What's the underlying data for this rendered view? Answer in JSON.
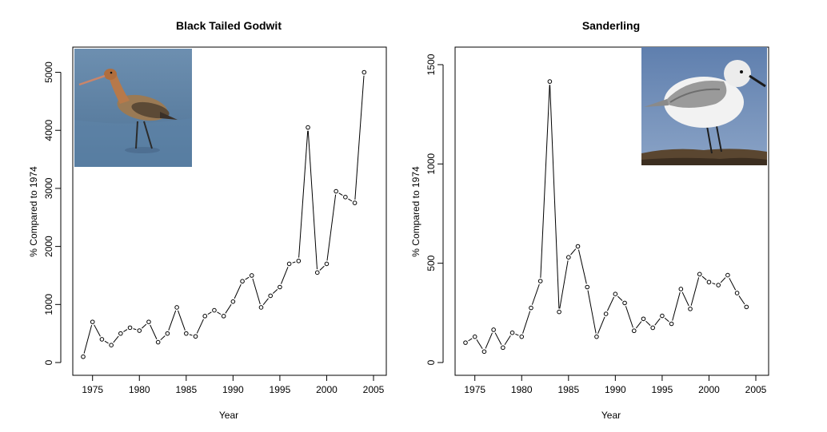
{
  "chart_data": [
    {
      "type": "line",
      "title": "Black Tailed Godwit",
      "xlabel": "Year",
      "ylabel": "% Compared to 1974",
      "xlim": [
        1974,
        2005
      ],
      "ylim": [
        0,
        5200
      ],
      "x_ticks": [
        1975,
        1980,
        1985,
        1990,
        1995,
        2000,
        2005
      ],
      "y_ticks": [
        0,
        1000,
        2000,
        3000,
        4000,
        5000
      ],
      "grid": false,
      "inset_image": "black-tailed-godwit-photo",
      "x": [
        1974,
        1975,
        1976,
        1977,
        1978,
        1979,
        1980,
        1981,
        1982,
        1983,
        1984,
        1985,
        1986,
        1987,
        1988,
        1989,
        1990,
        1991,
        1992,
        1993,
        1994,
        1995,
        1996,
        1997,
        1998,
        1999,
        2000,
        2001,
        2002,
        2003,
        2004
      ],
      "values": [
        100,
        700,
        400,
        300,
        500,
        600,
        550,
        700,
        350,
        500,
        950,
        500,
        450,
        800,
        900,
        800,
        1050,
        1400,
        1500,
        950,
        1150,
        1300,
        1700,
        1750,
        4050,
        1550,
        1700,
        2950,
        2850,
        2750,
        5000
      ]
    },
    {
      "type": "line",
      "title": "Sanderling",
      "xlabel": "Year",
      "ylabel": "% Compared to 1974",
      "xlim": [
        1974,
        2005
      ],
      "ylim": [
        0,
        1520
      ],
      "x_ticks": [
        1975,
        1980,
        1985,
        1990,
        1995,
        2000,
        2005
      ],
      "y_ticks": [
        0,
        500,
        1000,
        1500
      ],
      "grid": false,
      "inset_image": "sanderling-photo",
      "x": [
        1974,
        1975,
        1976,
        1977,
        1978,
        1979,
        1980,
        1981,
        1982,
        1983,
        1984,
        1985,
        1986,
        1987,
        1988,
        1989,
        1990,
        1991,
        1992,
        1993,
        1994,
        1995,
        1996,
        1997,
        1998,
        1999,
        2000,
        2001,
        2002,
        2003,
        2004
      ],
      "values": [
        100,
        130,
        55,
        165,
        75,
        150,
        130,
        275,
        410,
        1415,
        255,
        530,
        585,
        380,
        130,
        245,
        345,
        300,
        160,
        220,
        175,
        235,
        195,
        370,
        270,
        445,
        405,
        390,
        440,
        350,
        280
      ]
    }
  ]
}
